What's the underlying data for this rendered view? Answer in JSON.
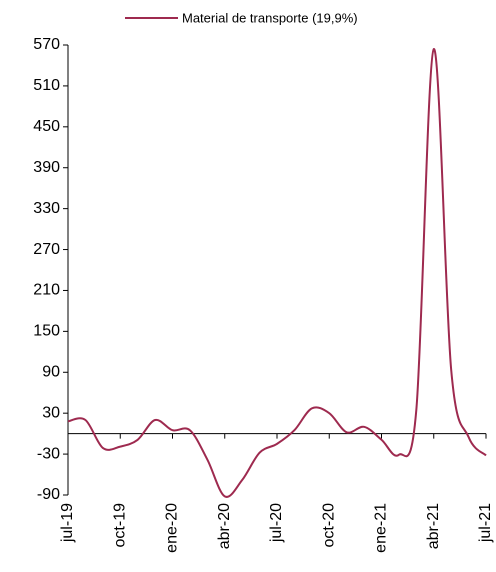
{
  "chart_data": {
    "type": "line",
    "categories": [
      "jul-19",
      null,
      null,
      "oct-19",
      null,
      null,
      "ene-20",
      null,
      null,
      "abr-20",
      null,
      null,
      "jul-20",
      null,
      null,
      "oct-20",
      null,
      null,
      "ene-21",
      null,
      null,
      "abr-21",
      null,
      null,
      "jul-21"
    ],
    "series": [
      {
        "name": "Material de transporte (19,9%)",
        "color": "#9e2a4f",
        "values": [
          18,
          20,
          -21,
          -19,
          -9,
          20,
          5,
          5,
          -38,
          -92,
          -68,
          -28,
          -15,
          5,
          37,
          30,
          2,
          10,
          -9,
          -31,
          35,
          564,
          94,
          -5,
          -32
        ]
      }
    ],
    "ylim": [
      -90,
      570
    ],
    "yticks": [
      -90,
      -30,
      30,
      90,
      150,
      210,
      270,
      330,
      390,
      450,
      510,
      570
    ],
    "legend": "top"
  }
}
